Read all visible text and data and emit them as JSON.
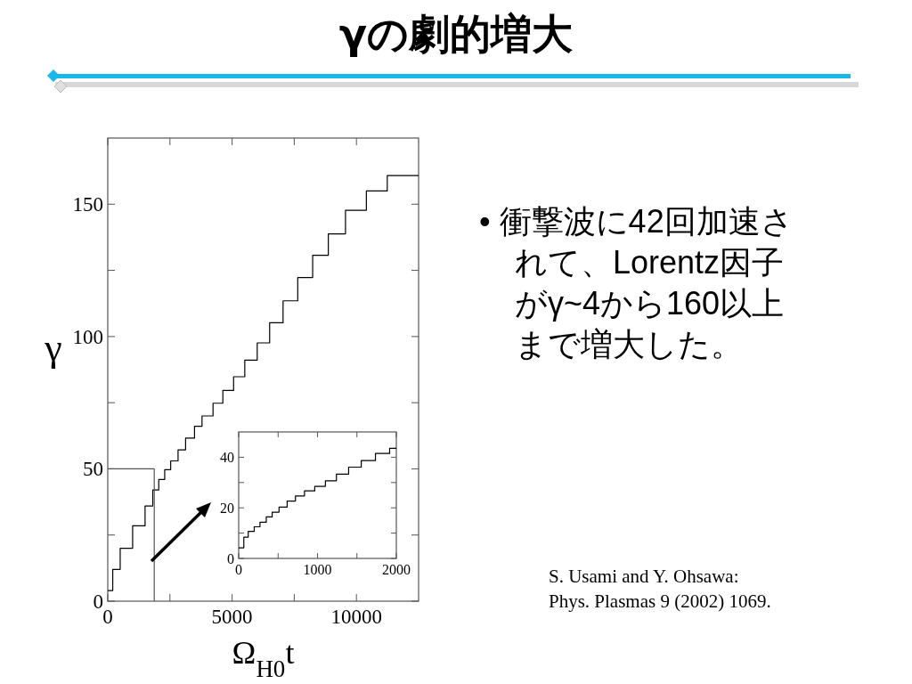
{
  "chart_data": [
    {
      "type": "step",
      "title": "γの劇的増大",
      "xlabel": "Ω$_{H0}$t",
      "ylabel": "γ",
      "series": [
        {
          "color": "#000000",
          "x": [
            0,
            200,
            500,
            1000,
            1500,
            1810,
            2050,
            2290,
            2530,
            2827,
            3130,
            3489,
            3790,
            4233,
            4628,
            5060,
            5510,
            6010,
            6510,
            7050,
            7640,
            8240,
            8870,
            9560,
            10400,
            11240,
            12500
          ],
          "values": [
            4,
            12,
            20,
            28.5,
            36,
            42,
            46,
            49.7,
            53,
            57.2,
            61.6,
            66.1,
            70,
            74.8,
            79.6,
            84.8,
            91.1,
            97.6,
            105.2,
            113.5,
            122.3,
            130.7,
            138.8,
            147.7,
            155,
            160.8,
            160.8
          ]
        },
        {
          "type": "line",
          "color": "#555555",
          "x": [
            0,
            1870,
            1870
          ],
          "values": [
            50,
            50,
            0
          ]
        }
      ],
      "xlim": [
        0,
        12500
      ],
      "ylim": [
        0,
        175
      ],
      "xticks": [
        0,
        {
          "value": 2500,
          "label": null
        },
        5000,
        {
          "value": 7500,
          "label": null
        },
        10000
      ],
      "yticks": [
        0,
        {
          "value": 25,
          "label": null
        },
        50,
        {
          "value": 75,
          "label": null
        },
        100,
        {
          "value": 125,
          "label": null
        },
        150
      ],
      "annotations": [
        "• 衝撃波に42回加速されて、Lorentz因子がγ~4から160以上まで増大した。",
        "S. Usami and Y. Ohsawa:",
        "Phys. Plasmas 9 (2002) 1069."
      ]
    },
    {
      "type": "step",
      "series": [
        {
          "color": "#000000",
          "x": [
            0,
            65,
            121,
            197,
            270,
            350,
            425,
            512,
            615,
            720,
            835,
            965,
            1100,
            1240,
            1395,
            1555,
            1735,
            1915,
            2000
          ],
          "values": [
            4.2,
            8.4,
            10.7,
            12.5,
            14.3,
            16.4,
            18.3,
            20.3,
            22.7,
            24.7,
            26.7,
            28.5,
            30.7,
            33.3,
            36.1,
            38.7,
            41.5,
            43.5,
            43.5
          ]
        }
      ],
      "xlim": [
        0,
        2000
      ],
      "ylim": [
        0,
        50
      ],
      "xticks": [
        0,
        {
          "value": 500,
          "label": null
        },
        1000,
        {
          "value": 1500,
          "label": null
        },
        2000
      ],
      "yticks": [
        0,
        {
          "value": 10,
          "label": null
        },
        20,
        {
          "value": 30,
          "label": null
        },
        40
      ]
    }
  ]
}
